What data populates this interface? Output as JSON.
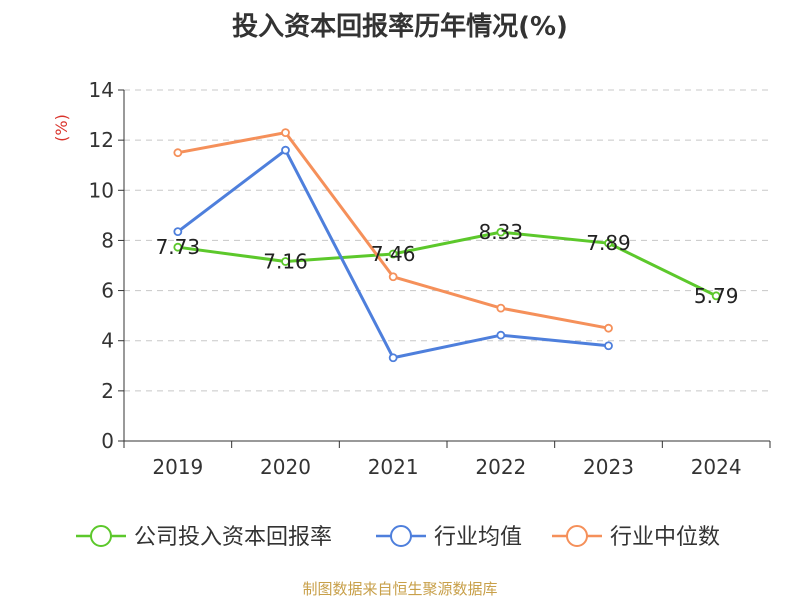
{
  "chart_data": {
    "type": "line",
    "title": "投入资本回报率历年情况(%)",
    "ylabel": "(%)",
    "xlabel": "",
    "categories": [
      "2019",
      "2020",
      "2021",
      "2022",
      "2023",
      "2024"
    ],
    "ylim": [
      0,
      14
    ],
    "yticks": [
      0,
      2,
      4,
      6,
      8,
      10,
      12,
      14
    ],
    "grid": true,
    "legend_position": "bottom",
    "series": [
      {
        "name": "公司投入资本回报率",
        "color": "#5cc82b",
        "values": [
          7.73,
          7.16,
          7.46,
          8.33,
          7.89,
          5.79
        ],
        "labels": [
          "7.73",
          "7.16",
          "7.46",
          "8.33",
          "7.89",
          "5.79"
        ]
      },
      {
        "name": "行业均值",
        "color": "#4e7fdc",
        "values": [
          8.35,
          11.6,
          3.32,
          4.22,
          3.8,
          null
        ]
      },
      {
        "name": "行业中位数",
        "color": "#f5905a",
        "values": [
          11.5,
          12.3,
          6.55,
          5.3,
          4.5,
          null
        ]
      }
    ]
  },
  "footer": "制图数据来自恒生聚源数据库"
}
